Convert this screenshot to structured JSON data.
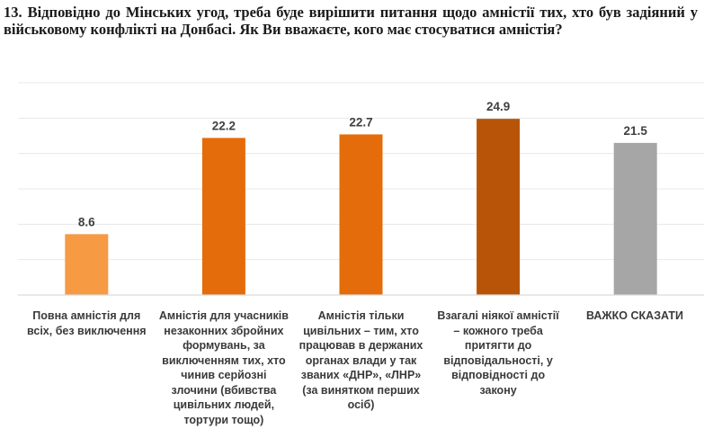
{
  "question": {
    "number": "13.",
    "text": "Відповідно до Мінських угод, треба буде вирішити питання щодо амністії тих, хто був задіяний у військовому конфлікті на Донбасі. Як Ви вважаєте, кого має стосуватися амністія?"
  },
  "chart_data": {
    "type": "bar",
    "title": "",
    "xlabel": "",
    "ylabel": "",
    "ylim": [
      0,
      30
    ],
    "grid": true,
    "categories": [
      "Повна амністія для\nвсіх, без виключення",
      "Амністія для учасників\nнезаконних збройних\nформувань, за\nвиключенням тих, хто\nчинив серйозні\nзлочини (вбивства\nцивільних людей,\nтортури тощо)",
      "Амністія тільки\nцивільних – тим, хто\nпрацював в держаних\nорганах влади у так\nзваних «ДНР», «ЛНР»\n(за винятком перших\nосіб)",
      "Взагалі ніякої амністії\n– кожного треба\nпритягти до\nвідповідальності, у\nвідповідності до\nзакону",
      "ВАЖКО СКАЗАТИ"
    ],
    "values": [
      8.6,
      22.2,
      22.7,
      24.9,
      21.5
    ],
    "value_labels": [
      "8.6",
      "22.2",
      "22.7",
      "24.9",
      "21.5"
    ],
    "colors": [
      "#f79a44",
      "#e46c0a",
      "#e46c0a",
      "#b85407",
      "#a6a6a6"
    ]
  }
}
